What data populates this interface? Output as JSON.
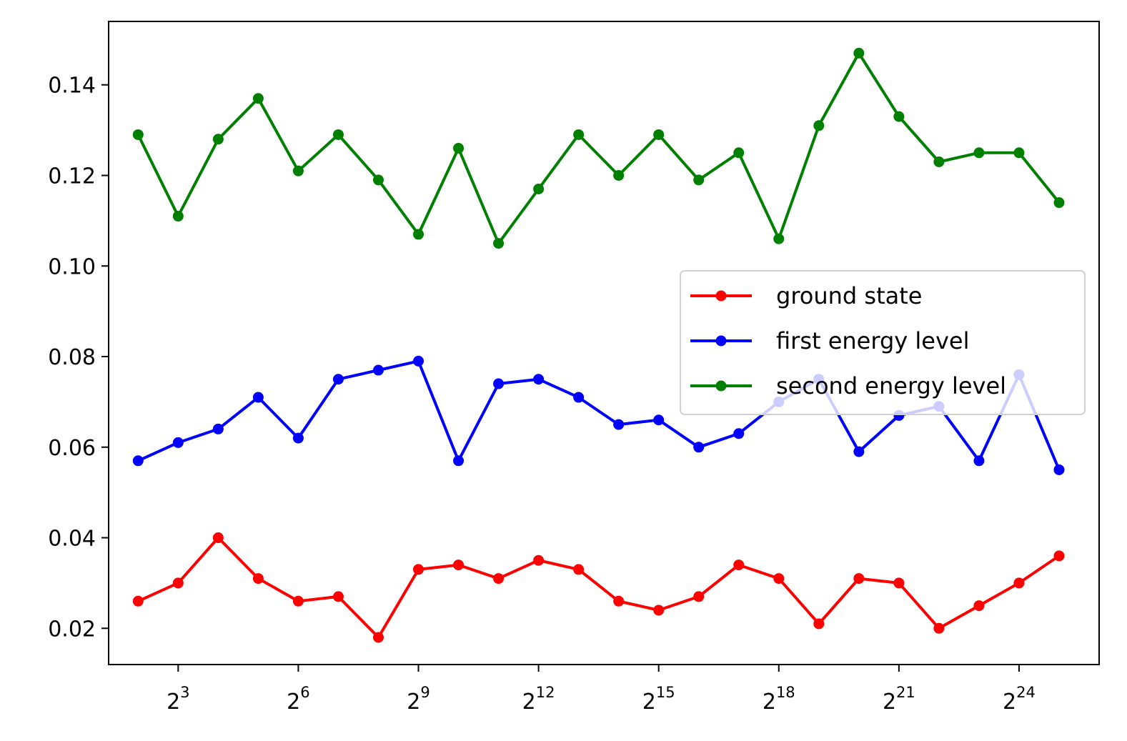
{
  "chart_data": {
    "type": "line",
    "title": "",
    "xlabel": "",
    "ylabel": "",
    "x_scale": "log2",
    "x": [
      4,
      8,
      16,
      32,
      64,
      128,
      256,
      512,
      1024,
      2048,
      4096,
      8192,
      16384,
      32768,
      65536,
      131072,
      262144,
      524288,
      1048576,
      2097152,
      4194304,
      8388608,
      16777216,
      33554432
    ],
    "xlim": [
      2.4,
      67108864
    ],
    "ylim": [
      0.012,
      0.154
    ],
    "xticks": [
      {
        "value": 8,
        "base": "2",
        "exp": "3"
      },
      {
        "value": 64,
        "base": "2",
        "exp": "6"
      },
      {
        "value": 512,
        "base": "2",
        "exp": "9"
      },
      {
        "value": 4096,
        "base": "2",
        "exp": "12"
      },
      {
        "value": 32768,
        "base": "2",
        "exp": "15"
      },
      {
        "value": 262144,
        "base": "2",
        "exp": "18"
      },
      {
        "value": 2097152,
        "base": "2",
        "exp": "21"
      },
      {
        "value": 16777216,
        "base": "2",
        "exp": "24"
      }
    ],
    "yticks": [
      {
        "value": 0.02,
        "label": "0.02"
      },
      {
        "value": 0.04,
        "label": "0.04"
      },
      {
        "value": 0.06,
        "label": "0.06"
      },
      {
        "value": 0.08,
        "label": "0.08"
      },
      {
        "value": 0.1,
        "label": "0.10"
      },
      {
        "value": 0.12,
        "label": "0.12"
      },
      {
        "value": 0.14,
        "label": "0.14"
      }
    ],
    "grid": false,
    "legend_position": "center-right",
    "series": [
      {
        "name": "ground state",
        "color": "#ff0000",
        "values": [
          0.026,
          0.03,
          0.04,
          0.031,
          0.026,
          0.027,
          0.018,
          0.033,
          0.034,
          0.031,
          0.035,
          0.033,
          0.026,
          0.024,
          0.027,
          0.034,
          0.031,
          0.021,
          0.031,
          0.03,
          0.02,
          0.025,
          0.03,
          0.036
        ]
      },
      {
        "name": "first energy level",
        "color": "#0000ff",
        "values": [
          0.057,
          0.061,
          0.064,
          0.071,
          0.062,
          0.075,
          0.077,
          0.079,
          0.057,
          0.074,
          0.075,
          0.071,
          0.065,
          0.066,
          0.06,
          0.063,
          0.07,
          0.075,
          0.059,
          0.067,
          0.069,
          0.057,
          0.076,
          0.055
        ]
      },
      {
        "name": "second energy level",
        "color": "#008000",
        "values": [
          0.129,
          0.111,
          0.128,
          0.137,
          0.121,
          0.129,
          0.119,
          0.107,
          0.126,
          0.105,
          0.117,
          0.129,
          0.12,
          0.129,
          0.119,
          0.125,
          0.106,
          0.131,
          0.147,
          0.133,
          0.123,
          0.125,
          0.125,
          0.114
        ]
      }
    ]
  }
}
